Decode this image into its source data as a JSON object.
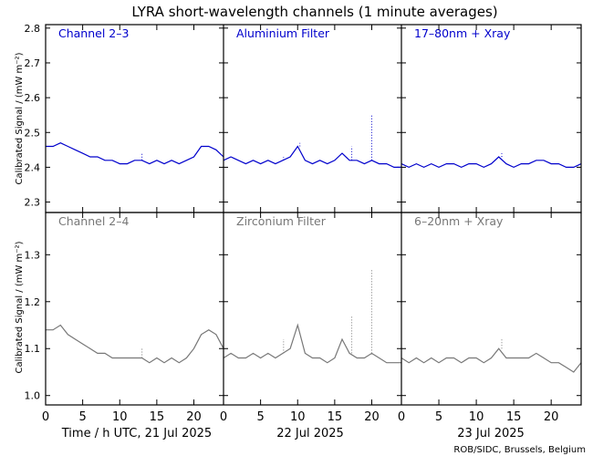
{
  "chart_data": {
    "type": "line",
    "title": "LYRA short-wavelength channels (1 minute averages)",
    "ylabel": "Calibrated Signal / (mW m⁻²)",
    "credit": "ROB/SIDC, Brussels, Belgium",
    "colors": {
      "top": "#0000cc",
      "bottom": "#777777",
      "frame": "#000000"
    },
    "x_tick_labels": [
      "0",
      "5",
      "10",
      "15",
      "20"
    ],
    "x_ticks_hours": [
      0,
      5,
      10,
      15,
      20
    ],
    "day_labels": [
      "Time / h UTC, 21 Jul 2025",
      "22 Jul 2025",
      "23 Jul 2025"
    ],
    "xlim_hours": [
      0,
      24
    ],
    "rows": [
      {
        "name": "top",
        "ylim": [
          2.27,
          2.81
        ],
        "yticks": [
          "2.3",
          "2.4",
          "2.5",
          "2.6",
          "2.7",
          "2.8"
        ],
        "ytick_values": [
          2.3,
          2.4,
          2.5,
          2.6,
          2.7,
          2.8
        ],
        "panel_titles": [
          "Channel 2–3",
          "Aluminium Filter",
          "17–80nm + Xray"
        ],
        "days": [
          {
            "x": [
              0,
              1,
              2,
              3,
              4,
              5,
              6,
              7,
              8,
              9,
              10,
              11,
              12,
              13,
              14,
              15,
              16,
              17,
              18,
              19,
              20,
              21,
              22,
              23,
              24
            ],
            "y": [
              2.46,
              2.46,
              2.47,
              2.46,
              2.45,
              2.44,
              2.43,
              2.43,
              2.42,
              2.42,
              2.41,
              2.41,
              2.42,
              2.42,
              2.41,
              2.42,
              2.41,
              2.42,
              2.41,
              2.42,
              2.43,
              2.46,
              2.46,
              2.45,
              2.43
            ]
          },
          {
            "x": [
              0,
              1,
              2,
              3,
              4,
              5,
              6,
              7,
              8,
              9,
              10,
              11,
              12,
              13,
              14,
              15,
              16,
              17,
              18,
              19,
              20,
              21,
              22,
              23,
              24
            ],
            "y": [
              2.42,
              2.43,
              2.42,
              2.41,
              2.42,
              2.41,
              2.42,
              2.41,
              2.42,
              2.43,
              2.46,
              2.42,
              2.41,
              2.42,
              2.41,
              2.42,
              2.44,
              2.42,
              2.42,
              2.41,
              2.42,
              2.41,
              2.41,
              2.4,
              2.4
            ]
          },
          {
            "x": [
              0,
              1,
              2,
              3,
              4,
              5,
              6,
              7,
              8,
              9,
              10,
              11,
              12,
              13,
              14,
              15,
              16,
              17,
              18,
              19,
              20,
              21,
              22,
              23,
              24
            ],
            "y": [
              2.41,
              2.4,
              2.41,
              2.4,
              2.41,
              2.4,
              2.41,
              2.41,
              2.4,
              2.41,
              2.41,
              2.4,
              2.41,
              2.43,
              2.41,
              2.4,
              2.41,
              2.41,
              2.42,
              2.42,
              2.41,
              2.41,
              2.4,
              2.4,
              2.41
            ]
          }
        ]
      },
      {
        "name": "bottom",
        "ylim": [
          0.98,
          1.39
        ],
        "yticks": [
          "1.0",
          "1.1",
          "1.2",
          "1.3"
        ],
        "ytick_values": [
          1.0,
          1.1,
          1.2,
          1.3
        ],
        "panel_titles": [
          "Channel 2–4",
          "Zirconium Filter",
          "6–20nm + Xray"
        ],
        "days": [
          {
            "x": [
              0,
              1,
              2,
              3,
              4,
              5,
              6,
              7,
              8,
              9,
              10,
              11,
              12,
              13,
              14,
              15,
              16,
              17,
              18,
              19,
              20,
              21,
              22,
              23,
              24
            ],
            "y": [
              1.14,
              1.14,
              1.15,
              1.13,
              1.12,
              1.11,
              1.1,
              1.09,
              1.09,
              1.08,
              1.08,
              1.08,
              1.08,
              1.08,
              1.07,
              1.08,
              1.07,
              1.08,
              1.07,
              1.08,
              1.1,
              1.13,
              1.14,
              1.13,
              1.1
            ]
          },
          {
            "x": [
              0,
              1,
              2,
              3,
              4,
              5,
              6,
              7,
              8,
              9,
              10,
              11,
              12,
              13,
              14,
              15,
              16,
              17,
              18,
              19,
              20,
              21,
              22,
              23,
              24
            ],
            "y": [
              1.08,
              1.09,
              1.08,
              1.08,
              1.09,
              1.08,
              1.09,
              1.08,
              1.09,
              1.1,
              1.15,
              1.09,
              1.08,
              1.08,
              1.07,
              1.08,
              1.12,
              1.09,
              1.08,
              1.08,
              1.09,
              1.08,
              1.07,
              1.07,
              1.07
            ]
          },
          {
            "x": [
              0,
              1,
              2,
              3,
              4,
              5,
              6,
              7,
              8,
              9,
              10,
              11,
              12,
              13,
              14,
              15,
              16,
              17,
              18,
              19,
              20,
              21,
              22,
              23,
              24
            ],
            "y": [
              1.08,
              1.07,
              1.08,
              1.07,
              1.08,
              1.07,
              1.08,
              1.08,
              1.07,
              1.08,
              1.08,
              1.07,
              1.08,
              1.1,
              1.08,
              1.08,
              1.08,
              1.08,
              1.09,
              1.08,
              1.07,
              1.07,
              1.06,
              1.05,
              1.07
            ]
          }
        ]
      }
    ],
    "spikes": [
      {
        "row": 0,
        "day": 0,
        "x": 13.0,
        "y": 2.44
      },
      {
        "row": 0,
        "day": 1,
        "x": 8.1,
        "y": 2.43
      },
      {
        "row": 0,
        "day": 1,
        "x": 10.3,
        "y": 2.47
      },
      {
        "row": 0,
        "day": 1,
        "x": 17.3,
        "y": 2.46
      },
      {
        "row": 0,
        "day": 1,
        "x": 20.0,
        "y": 2.55
      },
      {
        "row": 0,
        "day": 2,
        "x": 13.4,
        "y": 2.44
      },
      {
        "row": 1,
        "day": 0,
        "x": 13.0,
        "y": 1.1
      },
      {
        "row": 1,
        "day": 1,
        "x": 8.1,
        "y": 1.12
      },
      {
        "row": 1,
        "day": 1,
        "x": 10.3,
        "y": 1.15
      },
      {
        "row": 1,
        "day": 1,
        "x": 17.3,
        "y": 1.17
      },
      {
        "row": 1,
        "day": 1,
        "x": 20.0,
        "y": 1.27
      },
      {
        "row": 1,
        "day": 2,
        "x": 13.4,
        "y": 1.12
      }
    ]
  }
}
